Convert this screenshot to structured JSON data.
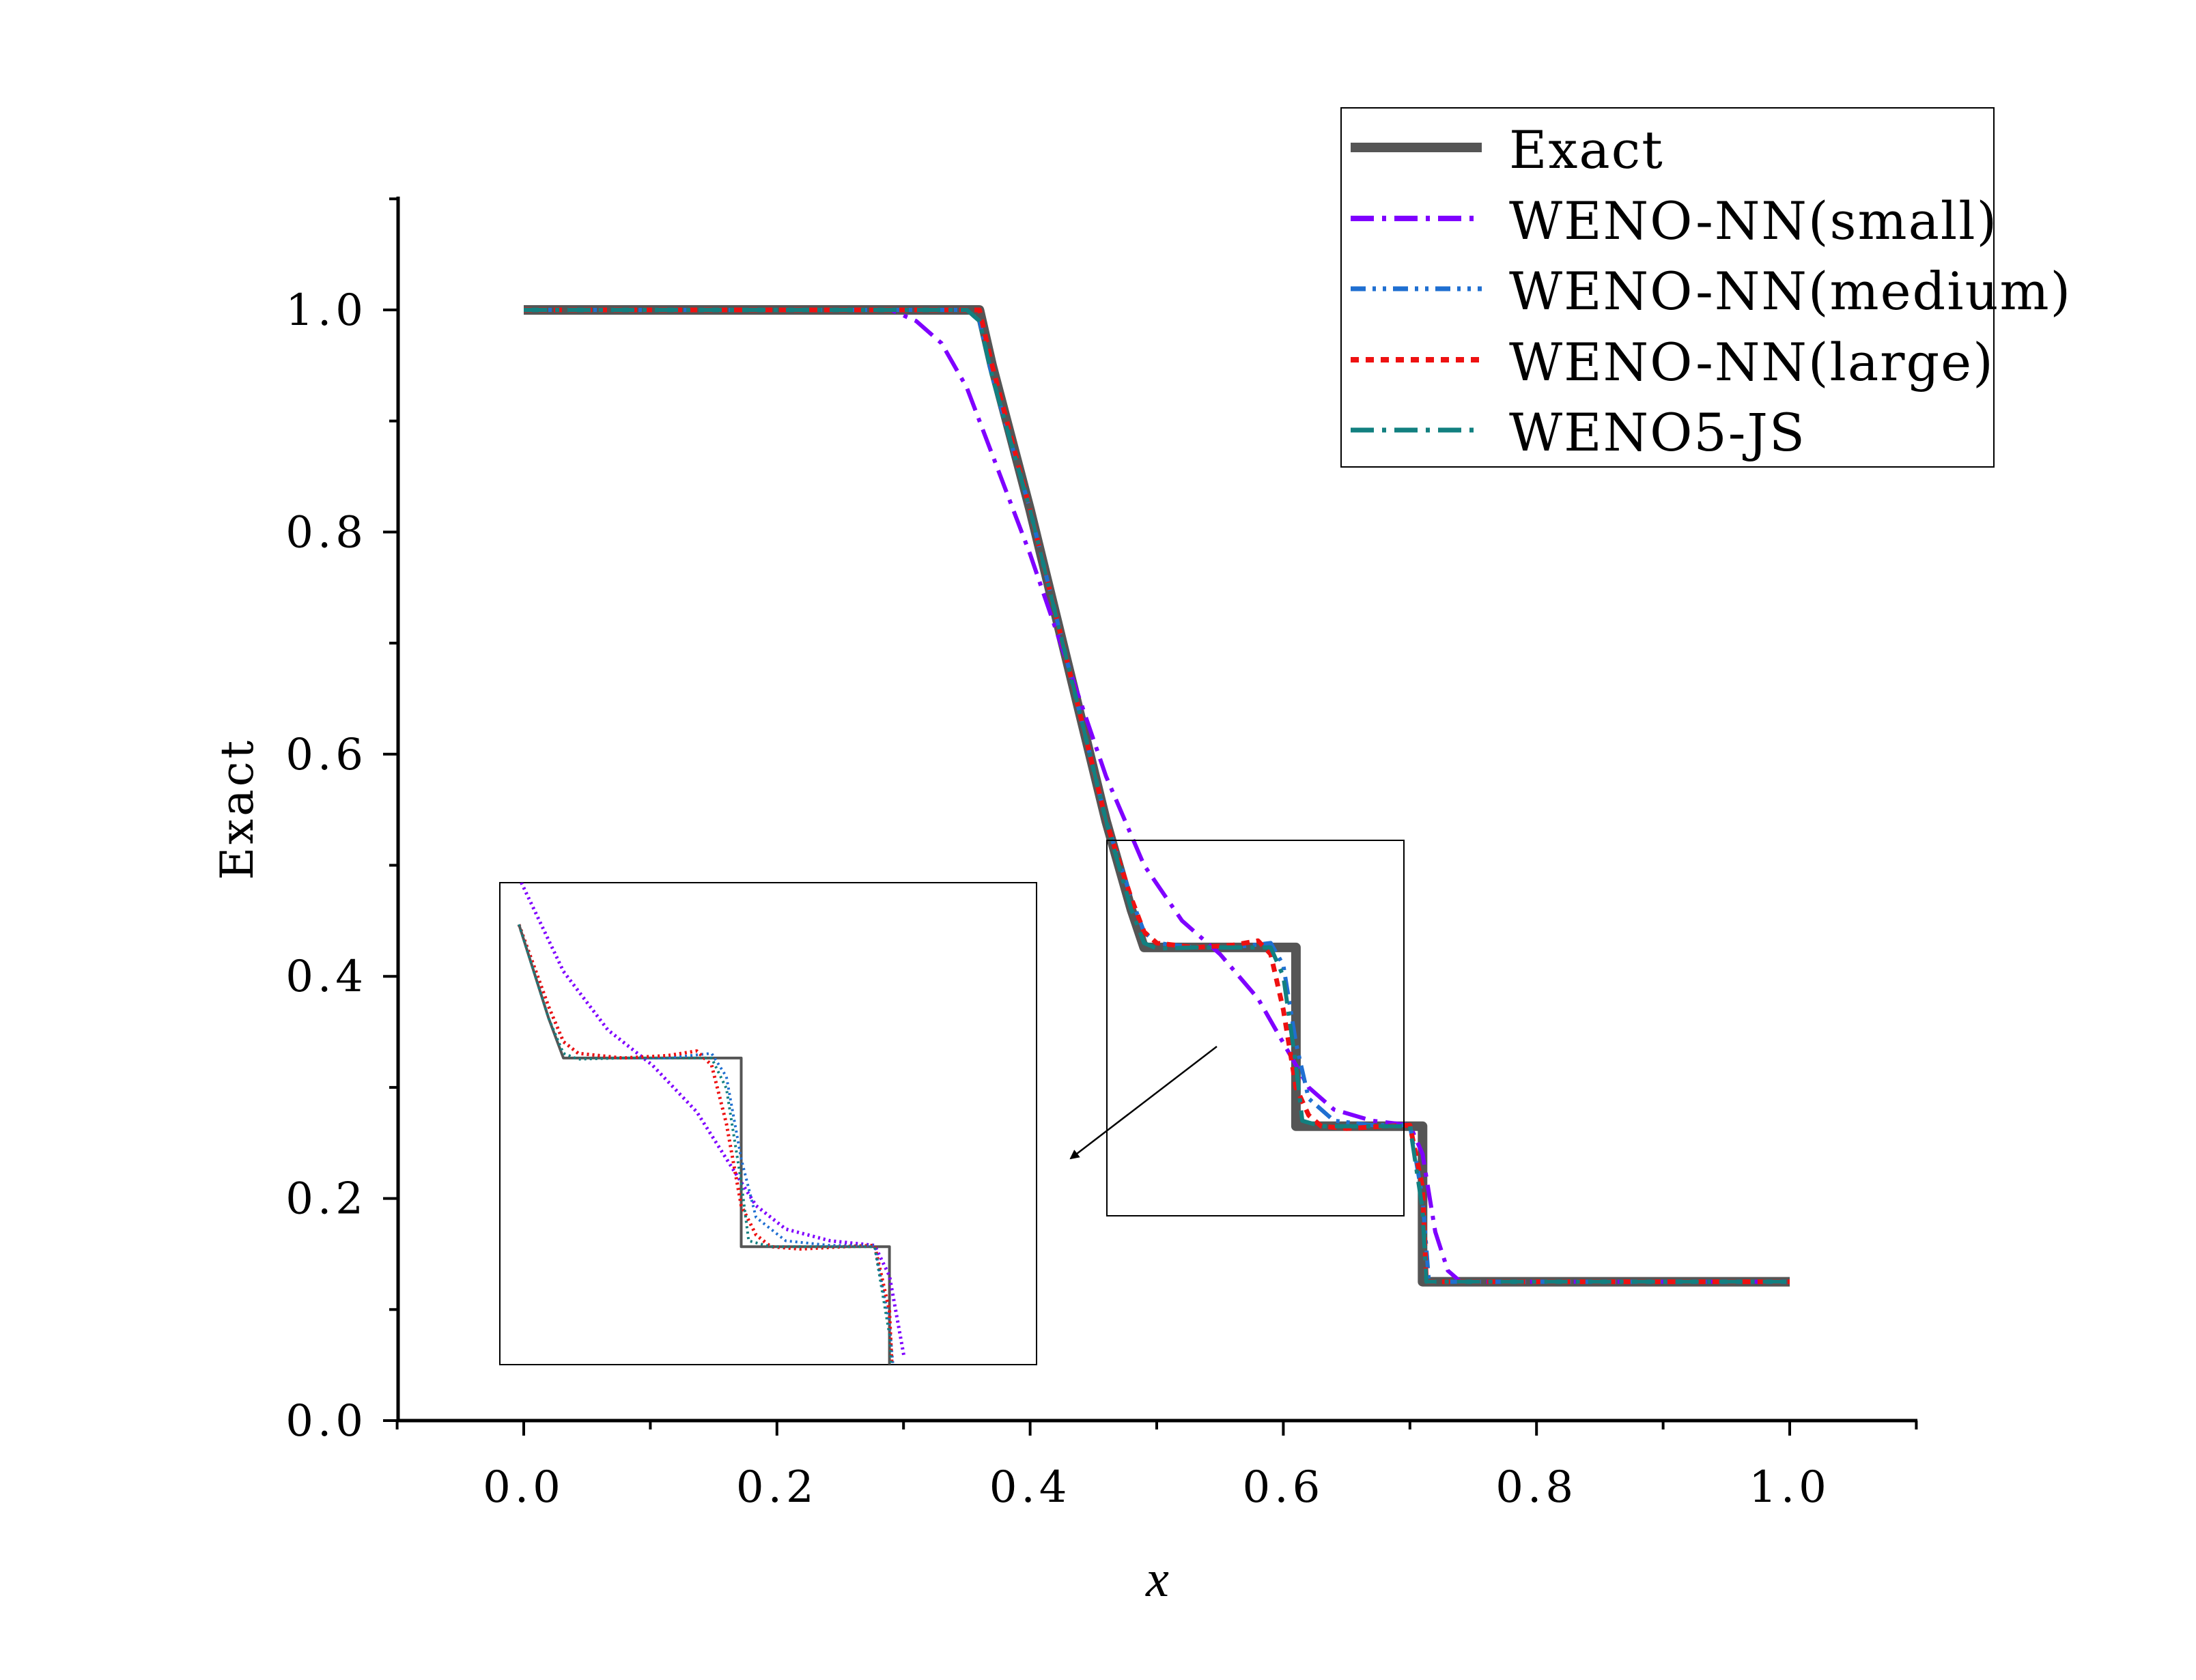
{
  "chart_data": {
    "type": "line",
    "title": "",
    "xlabel": "x",
    "ylabel": "Exact",
    "xlim": [
      -0.1,
      1.1
    ],
    "ylim": [
      0.0,
      1.1
    ],
    "xticks": [
      "0.0",
      "0.2",
      "0.4",
      "0.6",
      "0.8",
      "1.0"
    ],
    "yticks": [
      "0.0",
      "0.2",
      "0.4",
      "0.6",
      "0.8",
      "1.0"
    ],
    "legend_position": "top-right",
    "series": [
      {
        "name": "Exact",
        "color": "#555555",
        "style": "solid",
        "x": [
          0.0,
          0.36,
          0.37,
          0.4,
          0.43,
          0.46,
          0.48,
          0.49,
          0.61,
          0.61,
          0.71,
          0.71,
          1.0
        ],
        "y": [
          1.0,
          1.0,
          0.95,
          0.82,
          0.68,
          0.54,
          0.46,
          0.426,
          0.426,
          0.265,
          0.265,
          0.125,
          0.125
        ]
      },
      {
        "name": "WENO-NN(small)",
        "color": "#7F00FF",
        "style": "dashdot",
        "x": [
          0.0,
          0.29,
          0.31,
          0.33,
          0.35,
          0.37,
          0.4,
          0.43,
          0.46,
          0.49,
          0.52,
          0.55,
          0.58,
          0.6,
          0.62,
          0.64,
          0.67,
          0.7,
          0.71,
          0.72,
          0.73,
          0.74,
          1.0
        ],
        "y": [
          1.0,
          1.0,
          0.99,
          0.97,
          0.93,
          0.87,
          0.78,
          0.68,
          0.58,
          0.5,
          0.45,
          0.42,
          0.38,
          0.34,
          0.3,
          0.28,
          0.27,
          0.266,
          0.24,
          0.17,
          0.135,
          0.125,
          0.125
        ]
      },
      {
        "name": "WENO-NN(medium)",
        "color": "#1F6FD1",
        "style": "dashdotdot",
        "x": [
          0.0,
          0.35,
          0.36,
          0.37,
          0.4,
          0.43,
          0.46,
          0.48,
          0.49,
          0.5,
          0.53,
          0.56,
          0.59,
          0.6,
          0.61,
          0.62,
          0.64,
          0.67,
          0.7,
          0.71,
          0.715,
          1.0
        ],
        "y": [
          1.0,
          1.0,
          0.99,
          0.94,
          0.82,
          0.68,
          0.54,
          0.47,
          0.44,
          0.43,
          0.426,
          0.426,
          0.43,
          0.41,
          0.34,
          0.29,
          0.27,
          0.266,
          0.266,
          0.2,
          0.125,
          0.125
        ]
      },
      {
        "name": "WENO-NN(large)",
        "color": "#EE1111",
        "style": "dotted",
        "x": [
          0.0,
          0.36,
          0.37,
          0.4,
          0.43,
          0.46,
          0.48,
          0.49,
          0.5,
          0.53,
          0.56,
          0.58,
          0.59,
          0.6,
          0.61,
          0.62,
          0.63,
          0.65,
          0.68,
          0.7,
          0.71,
          0.713,
          1.0
        ],
        "y": [
          1.0,
          1.0,
          0.95,
          0.82,
          0.68,
          0.54,
          0.47,
          0.44,
          0.43,
          0.426,
          0.428,
          0.432,
          0.42,
          0.37,
          0.3,
          0.275,
          0.265,
          0.263,
          0.265,
          0.266,
          0.21,
          0.125,
          0.125
        ]
      },
      {
        "name": "WENO5-JS",
        "color": "#128080",
        "style": "dashdot",
        "x": [
          0.0,
          0.35,
          0.36,
          0.37,
          0.4,
          0.43,
          0.46,
          0.48,
          0.49,
          0.5,
          0.53,
          0.56,
          0.59,
          0.6,
          0.61,
          0.615,
          0.63,
          0.66,
          0.7,
          0.71,
          0.713,
          1.0
        ],
        "y": [
          1.0,
          1.0,
          0.99,
          0.94,
          0.82,
          0.68,
          0.54,
          0.46,
          0.43,
          0.425,
          0.426,
          0.426,
          0.426,
          0.4,
          0.32,
          0.27,
          0.265,
          0.265,
          0.265,
          0.19,
          0.125,
          0.125
        ]
      }
    ],
    "zoom_region": {
      "x": [
        0.46,
        0.695
      ],
      "y": [
        0.187,
        0.525
      ]
    },
    "annotations": [
      "zoomed inset of region 0.46 ≤ x ≤ 0.695 shown at lower-left, arrow from zoom box to inset"
    ]
  }
}
